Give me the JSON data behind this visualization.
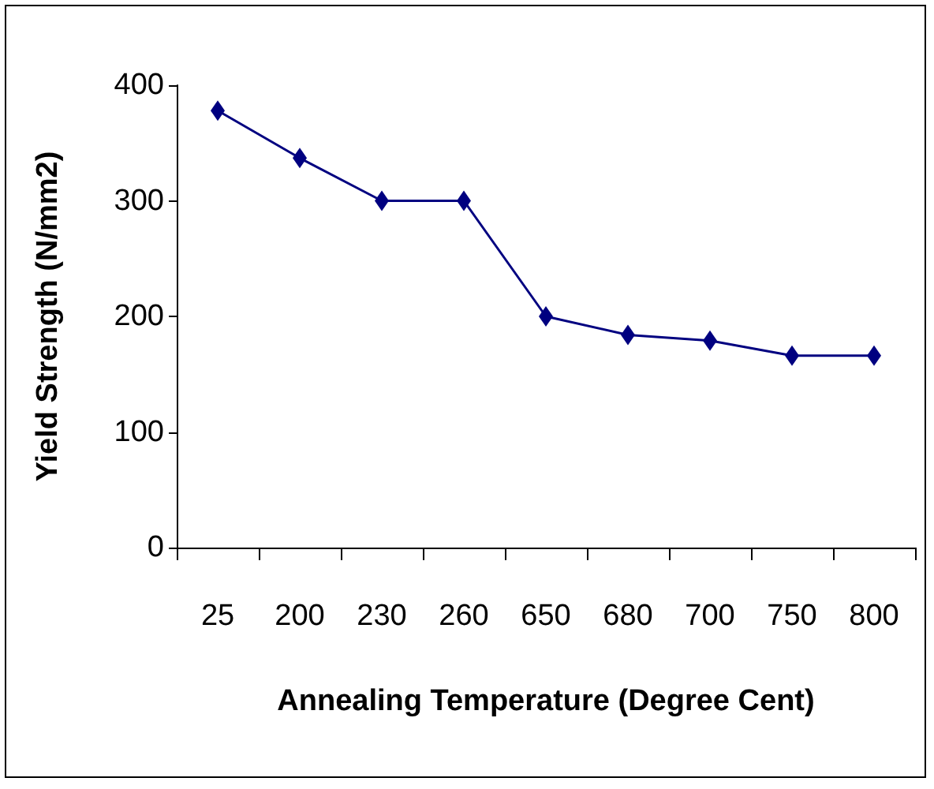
{
  "chart_data": {
    "type": "line",
    "xlabel": "Annealing Temperature (Degree Cent)",
    "ylabel": "Yield Strength (N/mm2)",
    "categories": [
      "25",
      "200",
      "230",
      "260",
      "650",
      "680",
      "700",
      "750",
      "800"
    ],
    "series": [
      {
        "color": "#000080",
        "values": [
          378,
          337,
          300,
          300,
          200,
          184,
          179,
          166,
          166
        ]
      }
    ],
    "ylim": [
      0,
      400
    ],
    "yticks": [
      0,
      100,
      200,
      300,
      400
    ],
    "grid": false,
    "marker": "diamond",
    "line_style": "solid"
  }
}
